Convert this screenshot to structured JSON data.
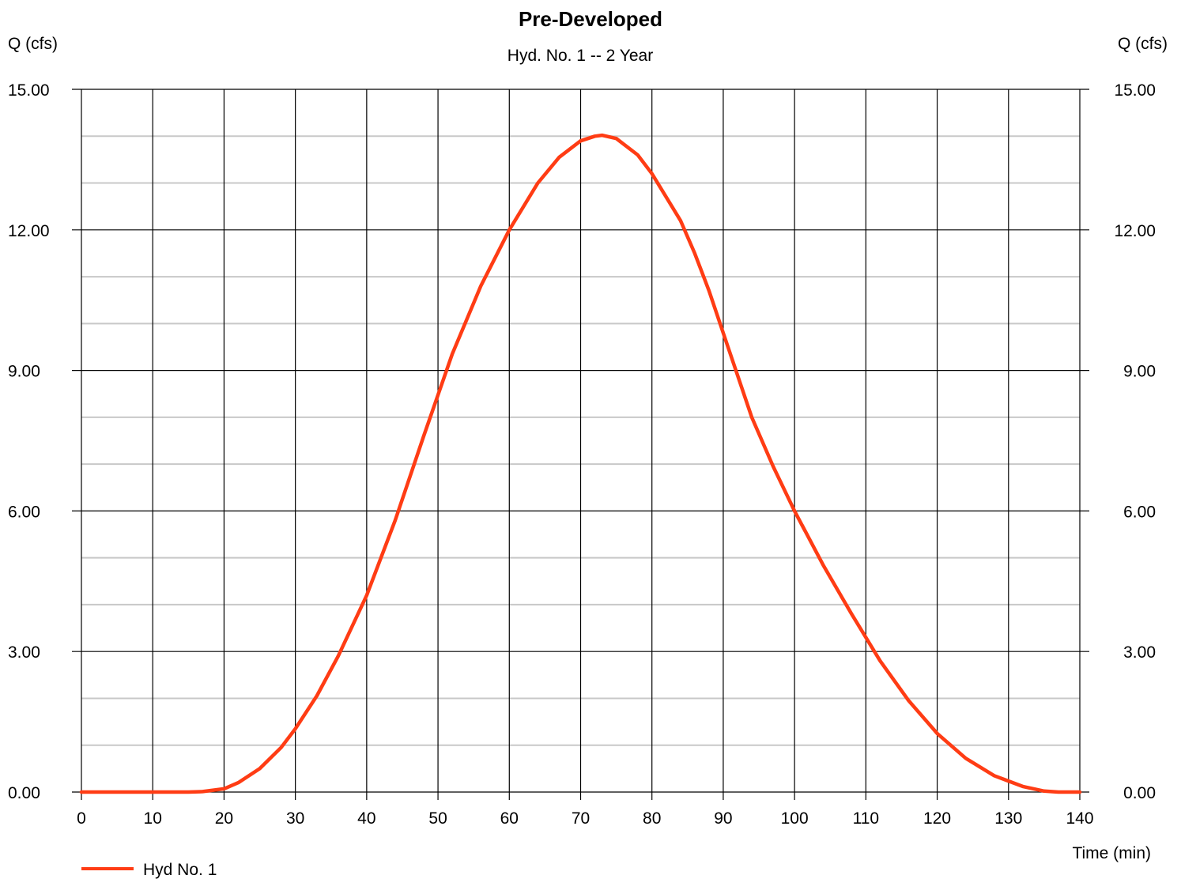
{
  "chart_data": {
    "type": "line",
    "title": "Pre-Developed",
    "subtitle": "Hyd. No. 1 -- 2 Year",
    "ylabel_left": "Q (cfs)",
    "ylabel_right": "Q (cfs)",
    "xlabel": "Time (min)",
    "xlim": [
      0,
      140
    ],
    "ylim": [
      0,
      15
    ],
    "x_ticks": [
      "0",
      "10",
      "20",
      "30",
      "40",
      "50",
      "60",
      "70",
      "80",
      "90",
      "100",
      "110",
      "120",
      "130",
      "140"
    ],
    "y_ticks": [
      "0.00",
      "3.00",
      "6.00",
      "9.00",
      "12.00",
      "15.00"
    ],
    "y_minor_step": 1,
    "grid": true,
    "legend_position": "bottom-left",
    "series": [
      {
        "name": "Hyd No. 1",
        "color": "#ff3c14",
        "x": [
          0,
          10,
          15,
          17,
          20,
          22,
          25,
          28,
          30,
          33,
          36,
          40,
          44,
          48,
          52,
          56,
          60,
          64,
          67,
          70,
          72,
          73,
          75,
          78,
          80,
          84,
          86,
          88,
          90,
          94,
          97,
          100,
          104,
          108,
          112,
          116,
          120,
          124,
          128,
          132,
          135,
          137,
          140
        ],
        "y": [
          0.0,
          0.0,
          0.0,
          0.01,
          0.07,
          0.2,
          0.5,
          0.95,
          1.35,
          2.05,
          2.9,
          4.2,
          5.8,
          7.6,
          9.35,
          10.8,
          12.0,
          13.0,
          13.55,
          13.9,
          14.0,
          14.02,
          13.95,
          13.6,
          13.2,
          12.2,
          11.5,
          10.7,
          9.8,
          8.0,
          6.95,
          6.0,
          4.85,
          3.8,
          2.8,
          1.95,
          1.25,
          0.72,
          0.35,
          0.12,
          0.02,
          0.0,
          0.0
        ]
      }
    ]
  }
}
